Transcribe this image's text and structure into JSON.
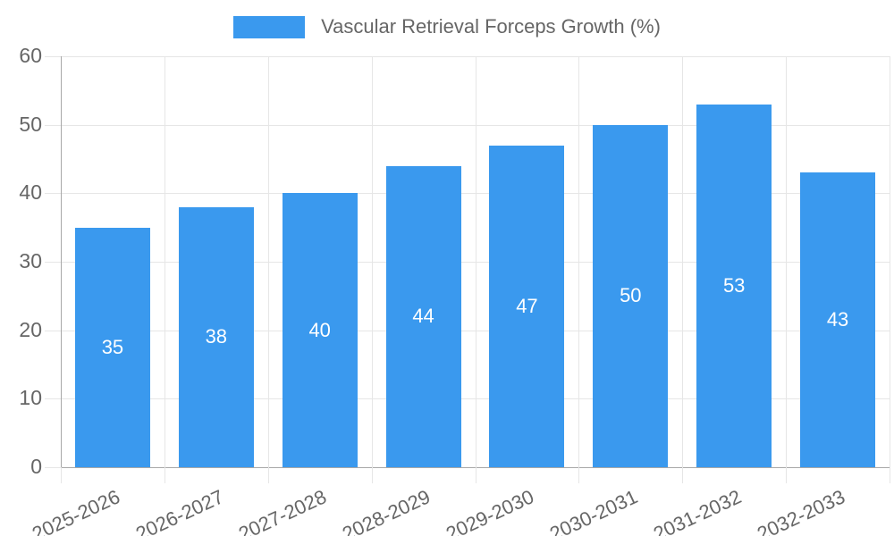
{
  "chart_data": {
    "type": "bar",
    "title": "",
    "series_name": "Vascular Retrieval Forceps Growth (%)",
    "categories": [
      "2025-2026",
      "2026-2027",
      "2027-2028",
      "2028-2029",
      "2029-2030",
      "2030-2031",
      "2031-2032",
      "2032-2033"
    ],
    "values": [
      35,
      38,
      40,
      44,
      47,
      50,
      53,
      43
    ],
    "ylim": [
      0,
      60
    ],
    "yticks": [
      0,
      10,
      20,
      30,
      40,
      50,
      60
    ],
    "grid": true,
    "legend_position": "top",
    "x_label_rotation_deg": -25,
    "colors": {
      "bar": "#3a99ee",
      "bar_value_label": "#ffffff",
      "tick_text": "#666666",
      "gridline": "#e6e6e6",
      "axis_border": "#a8a8a8",
      "background": "#ffffff"
    }
  }
}
